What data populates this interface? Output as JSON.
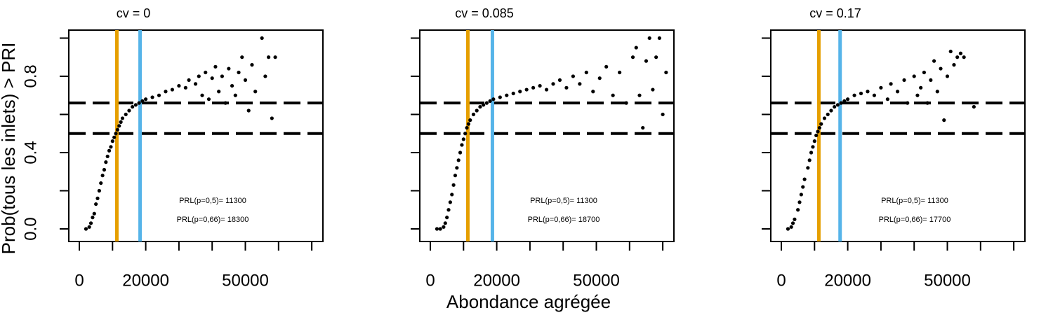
{
  "chart_data": [
    {
      "type": "scatter",
      "title": "cv = 0",
      "y_label": "Prob(tous les inlets) > PRI",
      "xlim": [
        -3170,
        73360
      ],
      "ylim": [
        -0.066,
        1.042
      ],
      "xticks": [
        0,
        20000,
        50000
      ],
      "xminor_ticks": [
        10000,
        30000,
        40000,
        60000,
        70000
      ],
      "yticks": [
        {
          "value": 0,
          "label": "0.0"
        },
        0.4,
        0.8
      ],
      "yminor_ticks": [
        0.2,
        0.6,
        1.0
      ],
      "hlines": [
        0.5,
        0.66
      ],
      "vlines": [
        {
          "value": 11300,
          "color": "#E69F00"
        },
        {
          "value": 18300,
          "color": "#56B4E9"
        }
      ],
      "annotations": [
        "PRL(p=0,5)=  11300",
        "PRL(p=0,66)=  18300"
      ],
      "color": "#000000",
      "x": [
        2000,
        3000,
        3500,
        4000,
        4500,
        5000,
        5500,
        6000,
        6500,
        7000,
        7500,
        8000,
        8500,
        9000,
        9500,
        10000,
        10500,
        11000,
        11500,
        12000,
        12500,
        13000,
        14000,
        15000,
        16000,
        17000,
        18000,
        19000,
        20000,
        22000,
        24000,
        26000,
        28000,
        30000,
        32000,
        33000,
        35000,
        36000,
        37000,
        38000,
        39000,
        40000,
        41000,
        42000,
        43000,
        44000,
        45000,
        46000,
        47000,
        48000,
        49000,
        50000,
        51000,
        52000,
        53000,
        55000,
        56000,
        57000,
        58000,
        59000
      ],
      "y": [
        0,
        0.01,
        0.03,
        0.06,
        0.08,
        0.13,
        0.16,
        0.2,
        0.24,
        0.28,
        0.31,
        0.35,
        0.38,
        0.41,
        0.43,
        0.46,
        0.48,
        0.5,
        0.52,
        0.54,
        0.56,
        0.58,
        0.6,
        0.62,
        0.64,
        0.65,
        0.66,
        0.67,
        0.68,
        0.69,
        0.7,
        0.72,
        0.73,
        0.75,
        0.74,
        0.78,
        0.76,
        0.8,
        0.7,
        0.82,
        0.68,
        0.79,
        0.85,
        0.72,
        0.8,
        0.66,
        0.84,
        0.75,
        0.7,
        0.82,
        0.9,
        0.78,
        0.62,
        0.86,
        0.72,
        1.0,
        0.8,
        0.9,
        0.58,
        0.9
      ]
    },
    {
      "type": "scatter",
      "title": "cv = 0.085",
      "x_label": "Abondance agrégée",
      "xlim": [
        -3170,
        73360
      ],
      "ylim": [
        -0.066,
        1.042
      ],
      "xticks": [
        0,
        20000,
        50000
      ],
      "xminor_ticks": [
        10000,
        30000,
        40000,
        60000,
        70000
      ],
      "yminor_ticks": [
        0,
        0.2,
        0.4,
        0.6,
        0.8,
        1.0
      ],
      "hlines": [
        0.5,
        0.66
      ],
      "vlines": [
        {
          "value": 11300,
          "color": "#E69F00"
        },
        {
          "value": 18700,
          "color": "#56B4E9"
        }
      ],
      "annotations": [
        "PRL(p=0,5)=  11300",
        "PRL(p=0,66)=  18700"
      ],
      "color": "#000000",
      "x": [
        2000,
        3000,
        4000,
        4500,
        5000,
        5500,
        6000,
        6500,
        7000,
        7500,
        8000,
        8500,
        9000,
        9500,
        10000,
        10500,
        11000,
        11500,
        12000,
        13000,
        14000,
        15000,
        16000,
        17000,
        18000,
        19000,
        21000,
        23000,
        25000,
        27000,
        29000,
        31000,
        33000,
        35000,
        37000,
        39000,
        41000,
        43000,
        45000,
        47000,
        49000,
        51000,
        53000,
        55000,
        57000,
        59000,
        61000,
        62000,
        63000,
        64000,
        65000,
        66000,
        67000,
        68000,
        69000,
        70000,
        71000
      ],
      "y": [
        0,
        0,
        0.01,
        0.03,
        0.06,
        0.1,
        0.14,
        0.18,
        0.23,
        0.28,
        0.32,
        0.36,
        0.4,
        0.44,
        0.47,
        0.5,
        0.53,
        0.55,
        0.57,
        0.6,
        0.62,
        0.64,
        0.65,
        0.66,
        0.67,
        0.68,
        0.69,
        0.7,
        0.71,
        0.72,
        0.73,
        0.74,
        0.75,
        0.73,
        0.76,
        0.78,
        0.74,
        0.8,
        0.76,
        0.82,
        0.72,
        0.79,
        0.85,
        0.7,
        0.82,
        0.66,
        0.9,
        0.95,
        0.7,
        0.53,
        0.88,
        1.0,
        0.73,
        0.9,
        1.0,
        0.6,
        0.82
      ]
    },
    {
      "type": "scatter",
      "title": "cv = 0.17",
      "xlim": [
        -3170,
        73360
      ],
      "ylim": [
        -0.066,
        1.042
      ],
      "xticks": [
        0,
        20000,
        50000
      ],
      "xminor_ticks": [
        10000,
        30000,
        40000,
        60000,
        70000
      ],
      "yminor_ticks": [
        0,
        0.2,
        0.4,
        0.6,
        0.8,
        1.0
      ],
      "hlines": [
        0.5,
        0.66
      ],
      "vlines": [
        {
          "value": 11300,
          "color": "#E69F00"
        },
        {
          "value": 17700,
          "color": "#56B4E9"
        }
      ],
      "annotations": [
        "PRL(p=0,5)=  11300",
        "PRL(p=0,66)=  17700"
      ],
      "color": "#000000",
      "x": [
        2000,
        3000,
        3500,
        4000,
        5000,
        5500,
        6000,
        6500,
        7000,
        8000,
        8500,
        9000,
        9500,
        10000,
        10500,
        11000,
        11500,
        12000,
        13000,
        14000,
        15000,
        16000,
        17000,
        18000,
        19000,
        20000,
        22000,
        24000,
        26000,
        28000,
        30000,
        32000,
        33000,
        35000,
        37000,
        38000,
        40000,
        41000,
        42000,
        43000,
        44000,
        45000,
        46000,
        47000,
        48000,
        49000,
        50000,
        51000,
        52000,
        53000,
        54000,
        55000,
        58000
      ],
      "y": [
        0,
        0.01,
        0.03,
        0.05,
        0.1,
        0.14,
        0.18,
        0.22,
        0.26,
        0.32,
        0.36,
        0.4,
        0.43,
        0.46,
        0.49,
        0.51,
        0.53,
        0.55,
        0.58,
        0.6,
        0.62,
        0.64,
        0.65,
        0.66,
        0.67,
        0.68,
        0.7,
        0.71,
        0.72,
        0.7,
        0.74,
        0.68,
        0.76,
        0.72,
        0.78,
        0.66,
        0.8,
        0.7,
        0.74,
        0.82,
        0.66,
        0.78,
        0.88,
        0.72,
        0.84,
        0.57,
        0.8,
        0.93,
        0.86,
        0.9,
        0.92,
        0.9,
        0.64
      ]
    }
  ]
}
